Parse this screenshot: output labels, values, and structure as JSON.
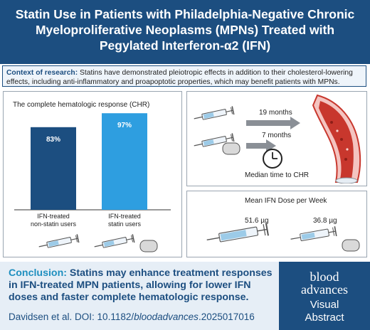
{
  "title": "Statin Use in Patients with Philadelphia-Negative Chronic Myeloproliferative Neoplasms (MPNs) Treated with Pegylated Interferon-α2 (IFN)",
  "context": {
    "label": "Context of research:",
    "text": " Statins have demonstrated pleiotropic effects in addition to their cholesterol-lowering effects, including anti-inflammatory and proapoptotic properties, which may benefit patients with MPNs."
  },
  "chr_panel": {
    "title": "The complete hematologic response (CHR)",
    "bars": [
      {
        "label_line1": "IFN-treated",
        "label_line2": "non-statin users",
        "value": 83,
        "value_text": "83%",
        "color": "#1c4e80"
      },
      {
        "label_line1": "IFN-treated",
        "label_line2": "statin users",
        "value": 97,
        "value_text": "97%",
        "color": "#2e9ee0"
      }
    ]
  },
  "time_panel": {
    "rows": [
      {
        "label": "19 months"
      },
      {
        "label": "7 months"
      }
    ],
    "caption": "Median time to CHR"
  },
  "dose_panel": {
    "title": "Mean IFN Dose per Week",
    "doses": [
      "51.6 µg",
      "36.8 µg"
    ]
  },
  "conclusion": {
    "label": "Conclusion:",
    "text": " Statins may enhance treatment responses in IFN-treated MPN patients, allowing for lower IFN doses and faster complete hematologic response."
  },
  "citation": {
    "prefix": "Davidsen et al. DOI: 10.1182/",
    "journal": "bloodadvances",
    "suffix": ".2025017016"
  },
  "logo": {
    "line1": "blood",
    "line2": "advances",
    "line3": "Visual",
    "line4": "Abstract"
  },
  "colors": {
    "navy": "#1c4e80",
    "light_blue": "#2e9ee0",
    "conclusion_bg": "#e6eef6",
    "vessel_red": "#c8372d"
  }
}
